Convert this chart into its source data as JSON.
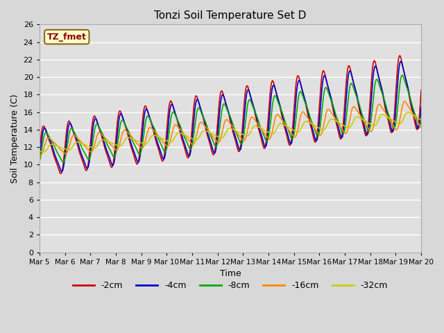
{
  "title": "Tonzi Soil Temperature Set D",
  "xlabel": "Time",
  "ylabel": "Soil Temperature (C)",
  "annotation": "TZ_fmet",
  "ylim": [
    0,
    26
  ],
  "yticks": [
    0,
    2,
    4,
    6,
    8,
    10,
    12,
    14,
    16,
    18,
    20,
    22,
    24,
    26
  ],
  "xtick_labels": [
    "Mar 5",
    "Mar 6",
    "Mar 7",
    "Mar 8",
    "Mar 9",
    "Mar 10",
    "Mar 11",
    "Mar 12",
    "Mar 13",
    "Mar 14",
    "Mar 15",
    "Mar 16",
    "Mar 17",
    "Mar 18",
    "Mar 19",
    "Mar 20"
  ],
  "series_colors": [
    "#cc0000",
    "#0000cc",
    "#00aa00",
    "#ff8800",
    "#cccc00"
  ],
  "series_labels": [
    "-2cm",
    "-4cm",
    "-8cm",
    "-16cm",
    "-32cm"
  ],
  "plot_bg_color": "#e0e0e0",
  "grid_color": "#ffffff"
}
